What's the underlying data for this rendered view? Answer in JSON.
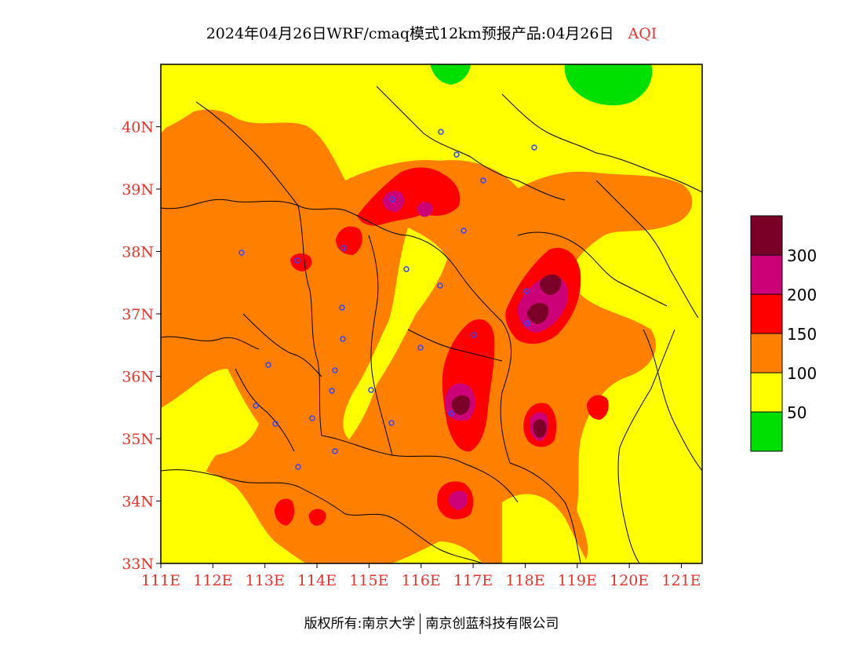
{
  "title": {
    "main": "2024年04月26日WRF/cmaq模式12km预报产品:04月26日",
    "variable": "AQI"
  },
  "map": {
    "lat_labels": [
      "40N",
      "39N",
      "38N",
      "37N",
      "36N",
      "35N",
      "34N",
      "33N"
    ],
    "lon_labels": [
      "111E",
      "112E",
      "113E",
      "114E",
      "115E",
      "116E",
      "117E",
      "118E",
      "119E",
      "120E",
      "121E"
    ],
    "extent": {
      "lon": [
        111.0,
        121.4
      ],
      "lat": [
        33.0,
        41.0
      ]
    },
    "label_color": "#e8322c"
  },
  "legend": {
    "levels": [
      {
        "label": "",
        "color": "#7a0028"
      },
      {
        "label": "300",
        "color": "#cc0077"
      },
      {
        "label": "200",
        "color": "#ff0000"
      },
      {
        "label": "150",
        "color": "#ff8000"
      },
      {
        "label": "100",
        "color": "#ffff00"
      },
      {
        "label": "50",
        "color": "#00e000"
      }
    ]
  },
  "footer": {
    "copyright": "版权所有:南京大学",
    "company": "南京创蓝科技有限公司"
  }
}
